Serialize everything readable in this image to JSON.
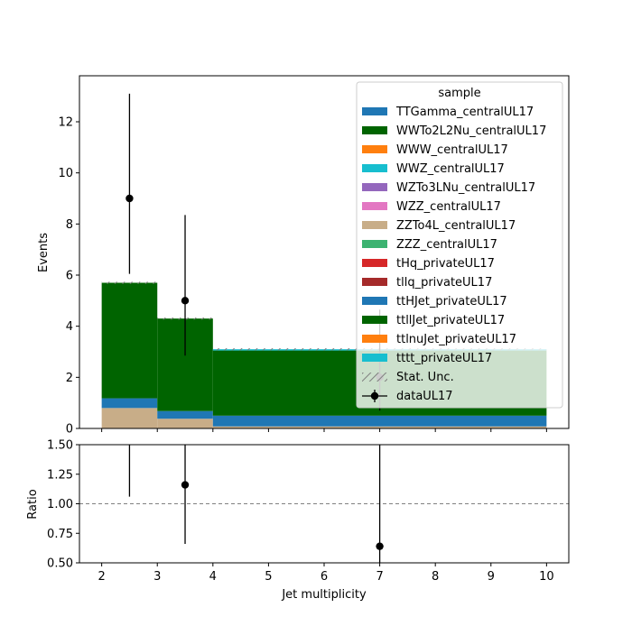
{
  "chart_data": [
    {
      "type": "bar",
      "stacked": true,
      "ylabel": "Events",
      "xlim": [
        1.6,
        10.4
      ],
      "ylim": [
        0,
        13.8
      ],
      "yticks": [
        0,
        2,
        4,
        6,
        8,
        10,
        12
      ],
      "xticks": [
        2,
        3,
        4,
        5,
        6,
        7,
        8,
        9,
        10
      ],
      "bins": [
        [
          2,
          3
        ],
        [
          3,
          4
        ],
        [
          4,
          10
        ]
      ],
      "series": [
        {
          "name": "ZZTo4L_centralUL17",
          "color": "#c8ad88",
          "values": [
            0.8,
            0.38,
            0.08
          ]
        },
        {
          "name": "TTGamma_centralUL17",
          "color": "#1f77b4",
          "values": [
            0.38,
            0.3,
            0.42
          ]
        },
        {
          "name": "WWTo2L2Nu_centralUL17",
          "color": "#006400",
          "values": [
            4.52,
            3.62,
            2.55
          ]
        },
        {
          "name": "WWZ_centralUL17",
          "color": "#17becf",
          "values": [
            0.0,
            0.0,
            0.05
          ]
        }
      ],
      "uncertainty": {
        "label": "Stat. Unc.",
        "totals": [
          5.7,
          4.3,
          3.1
        ],
        "err": [
          0.04,
          0.04,
          0.04
        ]
      },
      "data_points": {
        "label": "dataUL17",
        "x": [
          2.5,
          3.5,
          7
        ],
        "y": [
          9,
          5,
          2
        ],
        "err_low": [
          2.95,
          2.15,
          1.3
        ],
        "err_high": [
          4.1,
          3.35,
          2.65
        ]
      },
      "legend": {
        "title": "sample",
        "placement": "top-right",
        "entries": [
          {
            "label": "TTGamma_centralUL17",
            "color": "#1f77b4"
          },
          {
            "label": "WWTo2L2Nu_centralUL17",
            "color": "#006400"
          },
          {
            "label": "WWW_centralUL17",
            "color": "#ff7f0e"
          },
          {
            "label": "WWZ_centralUL17",
            "color": "#17becf"
          },
          {
            "label": "WZTo3LNu_centralUL17",
            "color": "#9467bd"
          },
          {
            "label": "WZZ_centralUL17",
            "color": "#e377c2"
          },
          {
            "label": "ZZTo4L_centralUL17",
            "color": "#c8ad88"
          },
          {
            "label": "ZZZ_centralUL17",
            "color": "#3cb371"
          },
          {
            "label": "tHq_privateUL17",
            "color": "#d62728"
          },
          {
            "label": "tllq_privateUL17",
            "color": "#a52a2a"
          },
          {
            "label": "ttHJet_privateUL17",
            "color": "#1f77b4"
          },
          {
            "label": "ttllJet_privateUL17",
            "color": "#006400"
          },
          {
            "label": "ttlnuJet_privateUL17",
            "color": "#ff7f0e"
          },
          {
            "label": "tttt_privateUL17",
            "color": "#17becf"
          }
        ],
        "unc_label": "Stat. Unc.",
        "data_label": "dataUL17"
      }
    },
    {
      "type": "scatter",
      "ylabel": "Ratio",
      "xlabel": "Jet multiplicity",
      "xlim": [
        1.6,
        10.4
      ],
      "ylim": [
        0.5,
        1.5
      ],
      "yticks": [
        "0.50",
        "0.75",
        "1.00",
        "1.25",
        "1.50"
      ],
      "ytick_values": [
        0.5,
        0.75,
        1.0,
        1.25,
        1.5
      ],
      "xticks": [
        "2",
        "3",
        "4",
        "5",
        "6",
        "7",
        "8",
        "9",
        "10"
      ],
      "xtick_values": [
        2,
        3,
        4,
        5,
        6,
        7,
        8,
        9,
        10
      ],
      "reference_line": 1.0,
      "points": {
        "x": [
          2.5,
          3.5,
          7
        ],
        "y": [
          1.58,
          1.16,
          0.64
        ],
        "err_low": [
          0.52,
          0.5,
          0.42
        ],
        "err_high": [
          0.72,
          0.78,
          0.86
        ]
      }
    }
  ]
}
